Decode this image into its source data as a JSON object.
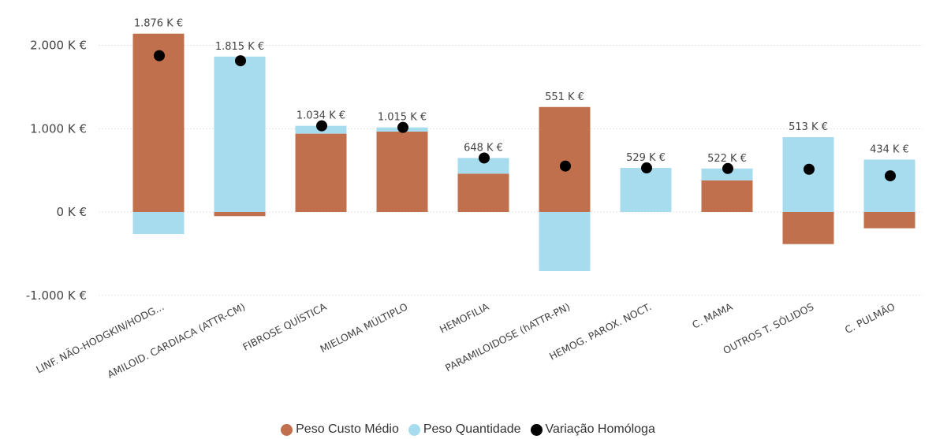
{
  "chart_data": {
    "type": "bar",
    "stacked": true,
    "categories": [
      "LINF. NÃO-HODGKIN/HODG...",
      "AMILOID. CARDIACA (ATTR-CM)",
      "FIBROSE QUÍSTICA",
      "MIELOMA MÚLTIPLO",
      "HEMOFILIA",
      "PARAMILOIDOSE (hATTR-PN)",
      "HEMOG. PAROX. NOCT.",
      "C. MAMA",
      "OUTROS T. SÓLIDOS",
      "C. PULMÃO"
    ],
    "series": [
      {
        "name": "Peso Custo Médio",
        "type": "bar",
        "color": "#c0704d",
        "values": [
          2140,
          -50,
          940,
          965,
          460,
          1260,
          0,
          380,
          -385,
          -195
        ]
      },
      {
        "name": "Peso Quantidade",
        "type": "bar",
        "color": "#a6dcee",
        "values": [
          -265,
          1865,
          94,
          50,
          188,
          -709,
          529,
          142,
          898,
          629
        ]
      },
      {
        "name": "Variação Homóloga",
        "type": "marker",
        "color": "#000000",
        "values": [
          1876,
          1815,
          1034,
          1015,
          648,
          551,
          529,
          522,
          513,
          434
        ]
      }
    ],
    "data_labels": [
      "1.876 K €",
      "1.815 K €",
      "1.034 K €",
      "1.015 K €",
      "648 K €",
      "551 K €",
      "529 K €",
      "522 K €",
      "513 K €",
      "434 K €"
    ],
    "yticks": [
      {
        "value": 2000,
        "label": "2.000 K €"
      },
      {
        "value": 1000,
        "label": "1.000 K €"
      },
      {
        "value": 0,
        "label": "0 K €"
      },
      {
        "value": -1000,
        "label": "-1.000 K €"
      }
    ],
    "ylim": [
      -1000,
      2200
    ],
    "grid": true,
    "legend_position": "bottom-center"
  }
}
